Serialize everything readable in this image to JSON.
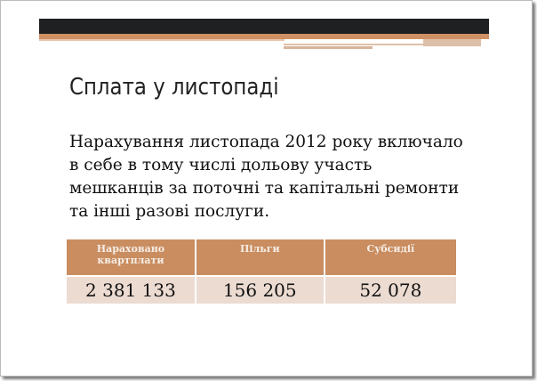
{
  "slide": {
    "title": "Сплата у листопаді",
    "body": "Нарахування листопада 2012 року включало в себе в тому числі дольову участь мешканців за поточні та капітальні ремонти та інші разові послуги.",
    "table": {
      "headers": [
        "Нараховано квартплати",
        "Пільги",
        "Субсидії"
      ],
      "rows": [
        [
          "2 381 133",
          "156 205",
          "52 078"
        ]
      ]
    }
  },
  "colors": {
    "header_fill": "#c98d60",
    "row_fill": "#ecdbd1",
    "top_bar": "#1f2022",
    "accent_bar": "#cf9164"
  }
}
